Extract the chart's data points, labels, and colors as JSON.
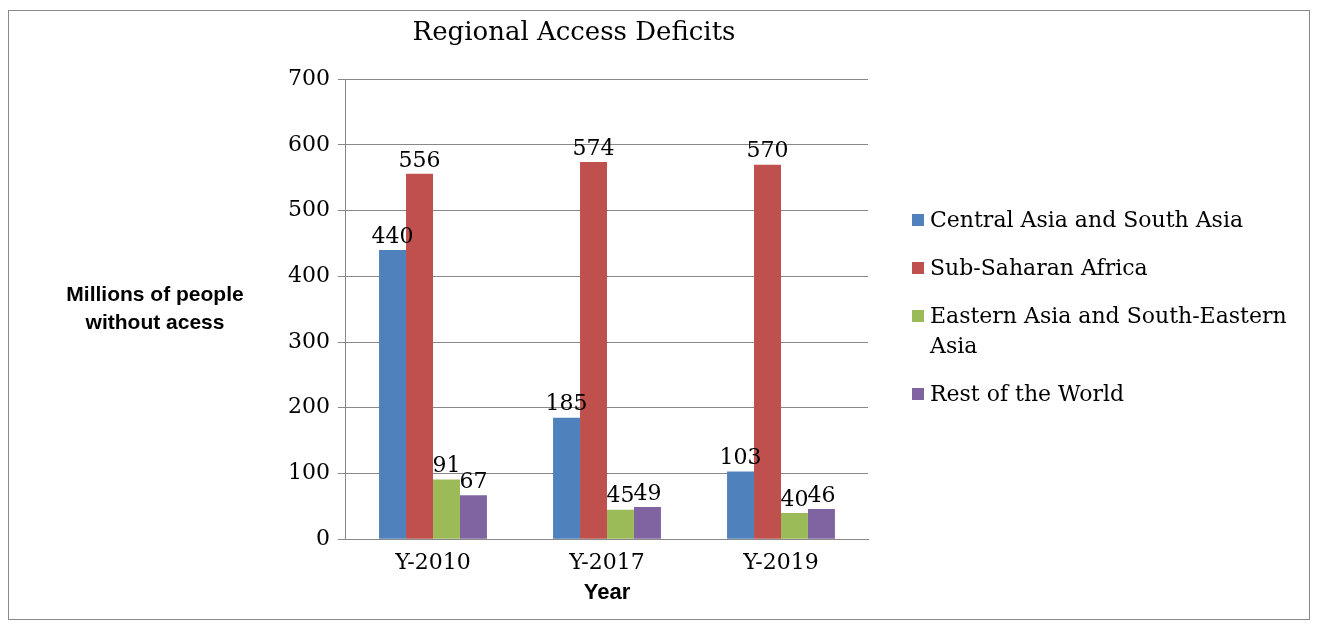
{
  "chart_data": {
    "type": "bar",
    "title": "Regional Access Deficits",
    "xlabel": "Year",
    "ylabel": "Millions of people without acess",
    "categories": [
      "Y-2010",
      "Y-2017",
      "Y-2019"
    ],
    "series": [
      {
        "name": "Central Asia and South Asia",
        "color": "#4f81bd",
        "values": [
          440,
          185,
          103
        ]
      },
      {
        "name": "Sub-Saharan Africa",
        "color": "#c0504d",
        "values": [
          556,
          574,
          570
        ]
      },
      {
        "name": "Eastern Asia and South-Eastern Asia",
        "color": "#9bbb59",
        "values": [
          91,
          45,
          40
        ]
      },
      {
        "name": "Rest of the World",
        "color": "#8064a2",
        "values": [
          67,
          49,
          46
        ]
      }
    ],
    "ylim": [
      0,
      700
    ],
    "yticks": [
      0,
      100,
      200,
      300,
      400,
      500,
      600,
      700
    ],
    "grid": "y",
    "legend": "right",
    "data_labels": true
  }
}
